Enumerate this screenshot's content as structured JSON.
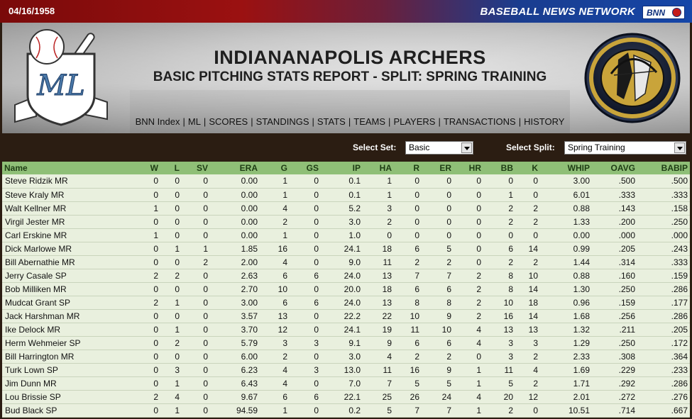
{
  "topbar": {
    "date": "04/16/1958",
    "network": "BASEBALL NEWS NETWORK",
    "bnn_logo": "BNN"
  },
  "header": {
    "team_name": "INDIANANAPOLIS ARCHERS",
    "report_title": "BASIC PITCHING STATS REPORT - SPLIT: SPRING TRAINING",
    "ml_logo_text": "ML",
    "nav": [
      "BNN Index",
      "ML",
      "SCORES",
      "STANDINGS",
      "STATS",
      "TEAMS",
      "PLAYERS",
      "TRANSACTIONS",
      "HISTORY"
    ]
  },
  "controls": {
    "set_label": "Select Set:",
    "set_value": "Basic",
    "split_label": "Select Split:",
    "split_value": "Spring Training"
  },
  "colors": {
    "header_row": "#8fbf77",
    "row_bg": "#e9f0de",
    "frame": "#2b1d12"
  },
  "table": {
    "columns": [
      "Name",
      "W",
      "L",
      "SV",
      "ERA",
      "G",
      "GS",
      "IP",
      "HA",
      "R",
      "ER",
      "HR",
      "BB",
      "K",
      "WHIP",
      "OAVG",
      "BABIP"
    ],
    "rows": [
      [
        "Steve Ridzik MR",
        "0",
        "0",
        "0",
        "0.00",
        "1",
        "0",
        "0.1",
        "1",
        "0",
        "0",
        "0",
        "0",
        "0",
        "3.00",
        ".500",
        ".500"
      ],
      [
        "Steve Kraly MR",
        "0",
        "0",
        "0",
        "0.00",
        "1",
        "0",
        "0.1",
        "1",
        "0",
        "0",
        "0",
        "1",
        "0",
        "6.01",
        ".333",
        ".333"
      ],
      [
        "Walt Kellner MR",
        "1",
        "0",
        "0",
        "0.00",
        "4",
        "0",
        "5.2",
        "3",
        "0",
        "0",
        "0",
        "2",
        "2",
        "0.88",
        ".143",
        ".158"
      ],
      [
        "Virgil Jester MR",
        "0",
        "0",
        "0",
        "0.00",
        "2",
        "0",
        "3.0",
        "2",
        "0",
        "0",
        "0",
        "2",
        "2",
        "1.33",
        ".200",
        ".250"
      ],
      [
        "Carl Erskine MR",
        "1",
        "0",
        "0",
        "0.00",
        "1",
        "0",
        "1.0",
        "0",
        "0",
        "0",
        "0",
        "0",
        "0",
        "0.00",
        ".000",
        ".000"
      ],
      [
        "Dick Marlowe MR",
        "0",
        "1",
        "1",
        "1.85",
        "16",
        "0",
        "24.1",
        "18",
        "6",
        "5",
        "0",
        "6",
        "14",
        "0.99",
        ".205",
        ".243"
      ],
      [
        "Bill Abernathie MR",
        "0",
        "0",
        "2",
        "2.00",
        "4",
        "0",
        "9.0",
        "11",
        "2",
        "2",
        "0",
        "2",
        "2",
        "1.44",
        ".314",
        ".333"
      ],
      [
        "Jerry Casale SP",
        "2",
        "2",
        "0",
        "2.63",
        "6",
        "6",
        "24.0",
        "13",
        "7",
        "7",
        "2",
        "8",
        "10",
        "0.88",
        ".160",
        ".159"
      ],
      [
        "Bob Milliken MR",
        "0",
        "0",
        "0",
        "2.70",
        "10",
        "0",
        "20.0",
        "18",
        "6",
        "6",
        "2",
        "8",
        "14",
        "1.30",
        ".250",
        ".286"
      ],
      [
        "Mudcat Grant SP",
        "2",
        "1",
        "0",
        "3.00",
        "6",
        "6",
        "24.0",
        "13",
        "8",
        "8",
        "2",
        "10",
        "18",
        "0.96",
        ".159",
        ".177"
      ],
      [
        "Jack Harshman MR",
        "0",
        "0",
        "0",
        "3.57",
        "13",
        "0",
        "22.2",
        "22",
        "10",
        "9",
        "2",
        "16",
        "14",
        "1.68",
        ".256",
        ".286"
      ],
      [
        "Ike Delock MR",
        "0",
        "1",
        "0",
        "3.70",
        "12",
        "0",
        "24.1",
        "19",
        "11",
        "10",
        "4",
        "13",
        "13",
        "1.32",
        ".211",
        ".205"
      ],
      [
        "Herm Wehmeier SP",
        "0",
        "2",
        "0",
        "5.79",
        "3",
        "3",
        "9.1",
        "9",
        "6",
        "6",
        "4",
        "3",
        "3",
        "1.29",
        ".250",
        ".172"
      ],
      [
        "Bill Harrington MR",
        "0",
        "0",
        "0",
        "6.00",
        "2",
        "0",
        "3.0",
        "4",
        "2",
        "2",
        "0",
        "3",
        "2",
        "2.33",
        ".308",
        ".364"
      ],
      [
        "Turk Lown SP",
        "0",
        "3",
        "0",
        "6.23",
        "4",
        "3",
        "13.0",
        "11",
        "16",
        "9",
        "1",
        "11",
        "4",
        "1.69",
        ".229",
        ".233"
      ],
      [
        "Jim Dunn MR",
        "0",
        "1",
        "0",
        "6.43",
        "4",
        "0",
        "7.0",
        "7",
        "5",
        "5",
        "1",
        "5",
        "2",
        "1.71",
        ".292",
        ".286"
      ],
      [
        "Lou Brissie SP",
        "2",
        "4",
        "0",
        "9.67",
        "6",
        "6",
        "22.1",
        "25",
        "26",
        "24",
        "4",
        "20",
        "12",
        "2.01",
        ".272",
        ".276"
      ],
      [
        "Bud Black SP",
        "0",
        "1",
        "0",
        "94.59",
        "1",
        "0",
        "0.2",
        "5",
        "7",
        "7",
        "1",
        "2",
        "0",
        "10.51",
        ".714",
        ".667"
      ]
    ]
  }
}
